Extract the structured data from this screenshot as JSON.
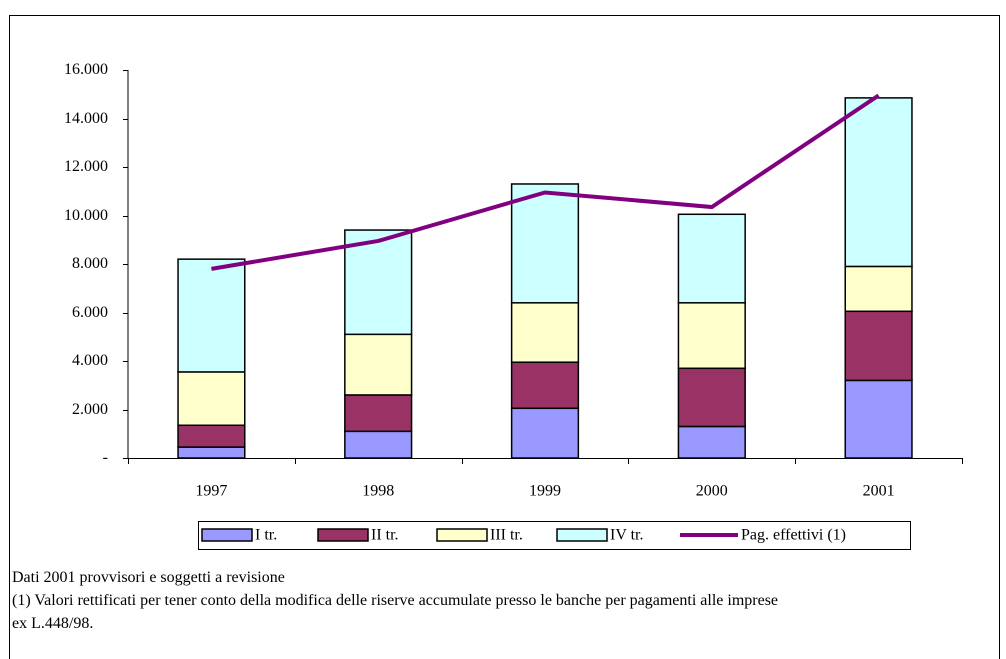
{
  "chart_data": {
    "type": "bar",
    "stacked": true,
    "categories": [
      "1997",
      "1998",
      "1999",
      "2000",
      "2001"
    ],
    "series": [
      {
        "name": "I tr.",
        "color": "#9999ff",
        "values": [
          450,
          1100,
          2050,
          1300,
          3200
        ]
      },
      {
        "name": "II tr.",
        "color": "#993366",
        "values": [
          900,
          1500,
          1900,
          2400,
          2850
        ]
      },
      {
        "name": "III tr.",
        "color": "#ffffcc",
        "values": [
          2200,
          2500,
          2450,
          2700,
          1850
        ]
      },
      {
        "name": "IV tr.",
        "color": "#ccffff",
        "values": [
          4650,
          4300,
          4900,
          3650,
          6950
        ]
      },
      {
        "name": "Pag. effettivi (1)",
        "color": "#800080",
        "type": "line",
        "values": [
          7800,
          8950,
          10950,
          10350,
          14950
        ]
      }
    ],
    "ylim": [
      0,
      16000
    ],
    "yticks": [
      {
        "value": 0,
        "label": "-"
      },
      {
        "value": 2000,
        "label": "2.000"
      },
      {
        "value": 4000,
        "label": "4.000"
      },
      {
        "value": 6000,
        "label": "6.000"
      },
      {
        "value": 8000,
        "label": "8.000"
      },
      {
        "value": 10000,
        "label": "10.000"
      },
      {
        "value": 12000,
        "label": "12.000"
      },
      {
        "value": 14000,
        "label": "14.000"
      },
      {
        "value": 16000,
        "label": "16.000"
      }
    ],
    "grid": false,
    "legend": "bottom",
    "notes": [
      "Dati 2001 provvisori e soggetti a revisione",
      "(1) Valori rettificati per tener conto della modifica delle riserve accumulate presso le banche per pagamenti alle imprese ex L.448/98."
    ]
  }
}
